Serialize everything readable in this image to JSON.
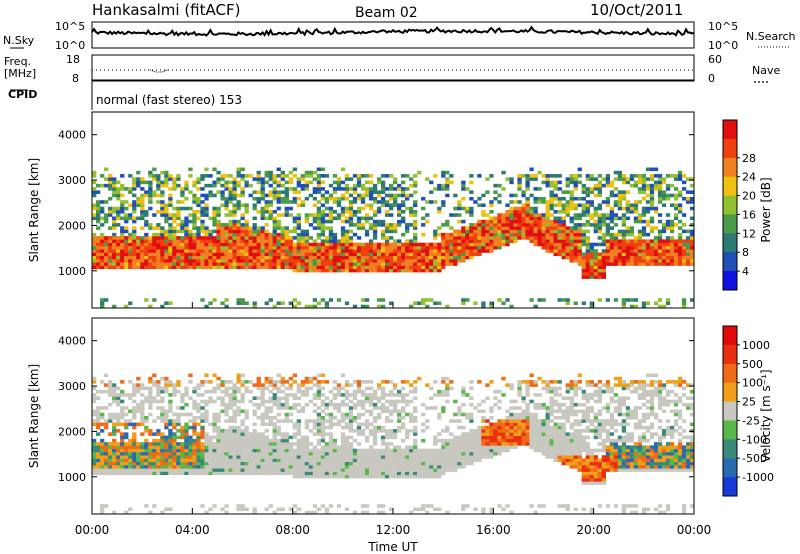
{
  "header": {
    "station": "Hankasalmi (fitACF)",
    "beam": "Beam 02",
    "date": "10/Oct/2011"
  },
  "noise_panel": {
    "left_label": "N.Sky",
    "right_label": "N.Search",
    "top_tick": "10^5",
    "bottom_tick": "10^0"
  },
  "freq_panel": {
    "left_label_1": "Freq.",
    "left_label_2": "[MHz]",
    "left_top_tick": "18",
    "left_bottom_tick": "8",
    "right_label": "Nave",
    "right_top_tick": "60",
    "right_bottom_tick": "0"
  },
  "cpid": {
    "label": "CPID",
    "value": "normal (fast stereo) 153"
  },
  "chart_data": [
    {
      "type": "heatmap",
      "quantity": "power",
      "ylabel": "Slant Range [km]",
      "xlabel": "",
      "x_range_hours": [
        0,
        24
      ],
      "ylim": [
        180,
        4500
      ],
      "ytick_labels": [
        "1000",
        "2000",
        "3000",
        "4000"
      ],
      "ytick_values": [
        1000,
        2000,
        3000,
        4000
      ],
      "colorbar": {
        "label": "Power [dB]",
        "ticks": [
          "4",
          "8",
          "12",
          "16",
          "20",
          "24",
          "28"
        ],
        "colors": [
          "#1010e0",
          "#1e50b8",
          "#2c7a72",
          "#4a9a4a",
          "#92c030",
          "#f0c010",
          "#f08020",
          "#f04010",
          "#e01010"
        ]
      },
      "bands_description": [
        {
          "region": "main echo band",
          "range_km": [
            1000,
            1800
          ],
          "dominant_power_db": 28
        },
        {
          "region": "upper scatter",
          "range_km": [
            1900,
            3100
          ],
          "dominant_power_db": 12
        }
      ]
    },
    {
      "type": "heatmap",
      "quantity": "velocity",
      "ylabel": "Slant Range [km]",
      "xlabel": "Time UT",
      "x_range_hours": [
        0,
        24
      ],
      "xtick_labels": [
        "00:00",
        "04:00",
        "08:00",
        "12:00",
        "16:00",
        "20:00",
        "00:00"
      ],
      "ylim": [
        180,
        4500
      ],
      "ytick_labels": [
        "1000",
        "2000",
        "3000",
        "4000"
      ],
      "ytick_values": [
        1000,
        2000,
        3000,
        4000
      ],
      "colorbar": {
        "label": "Velocity [m s⁻¹]",
        "ticks": [
          "1000",
          "500",
          "100",
          "25",
          "-25",
          "-100",
          "-500",
          "-1000"
        ],
        "colors": [
          "#1a3ad8",
          "#2a6ab0",
          "#3a8a7a",
          "#5ab84a",
          "#c8c8c0",
          "#f0a018",
          "#f06a18",
          "#e83010",
          "#e00a0a"
        ]
      }
    }
  ]
}
